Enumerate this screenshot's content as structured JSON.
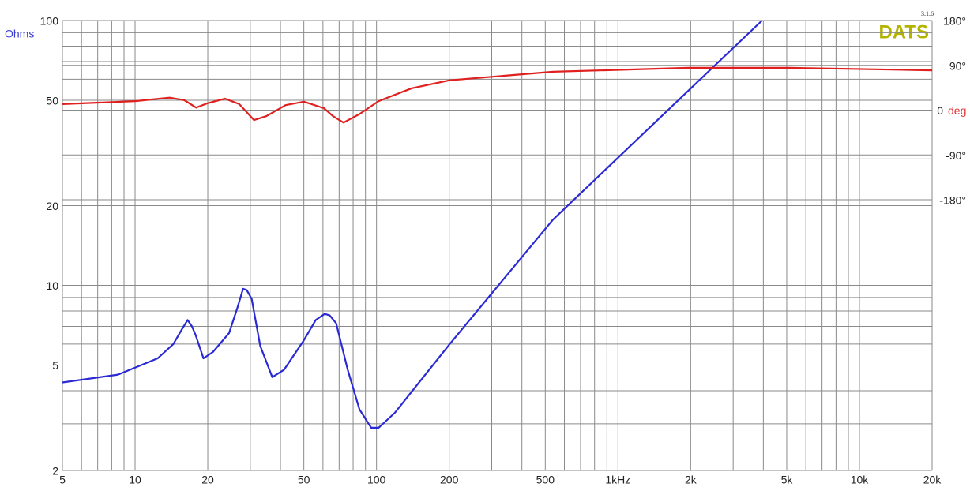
{
  "chart_data": {
    "type": "line",
    "logo": "DATS",
    "version": "3.1.6",
    "ylabel": "Ohms",
    "y2label": "deg",
    "xlog": true,
    "ylog": true,
    "xlim": [
      5,
      20000
    ],
    "ylim": [
      2,
      100
    ],
    "y2lim": [
      -724,
      180
    ],
    "xticks": [
      5,
      10,
      20,
      50,
      100,
      200,
      500,
      {
        "value": 1000,
        "label": "1kHz"
      },
      {
        "value": 2000,
        "label": "2k"
      },
      {
        "value": 5000,
        "label": "5k"
      },
      {
        "value": 10000,
        "label": "10k"
      },
      {
        "value": 20000,
        "label": "20k"
      }
    ],
    "yticks": [
      2,
      5,
      10,
      20,
      50,
      100
    ],
    "y2ticks": [
      {
        "value": 180,
        "label": "180°"
      },
      {
        "value": 90,
        "label": "90°"
      },
      0,
      {
        "value": -90,
        "label": "-90°"
      },
      {
        "value": -180,
        "label": "-180°"
      }
    ],
    "xgrid": [
      5,
      6,
      7,
      8,
      9,
      10,
      20,
      30,
      40,
      50,
      60,
      70,
      80,
      90,
      100,
      200,
      300,
      400,
      500,
      600,
      700,
      800,
      900,
      1000,
      2000,
      3000,
      4000,
      5000,
      6000,
      7000,
      8000,
      9000,
      10000,
      20000
    ],
    "ygrid": [
      2,
      3,
      4,
      5,
      6,
      7,
      8,
      9,
      10,
      20,
      30,
      40,
      50,
      60,
      70,
      80,
      90,
      100
    ],
    "grid": true,
    "series": [
      {
        "color": "#2a2ad4",
        "x": [
          5,
          8.5,
          12.4,
          14.4,
          15.6,
          16.5,
          17.2,
          17.8,
          19.2,
          21,
          24.5,
          26.5,
          28,
          29,
          30.4,
          33,
          37,
          41.4,
          50,
          56,
          61,
          64,
          68,
          76,
          85,
          95,
          102,
          119,
          201,
          538,
          1963,
          3950
        ],
        "values": [
          4.3,
          4.6,
          5.3,
          6.0,
          6.8,
          7.4,
          7.0,
          6.5,
          5.3,
          5.6,
          6.6,
          8.2,
          9.7,
          9.6,
          8.9,
          5.9,
          4.5,
          4.8,
          6.2,
          7.4,
          7.8,
          7.7,
          7.2,
          4.8,
          3.4,
          2.9,
          2.9,
          3.3,
          6.0,
          17.7,
          54.5,
          100
        ]
      },
      {
        "color": "#e01f1f",
        "axis": "y2",
        "x": [
          5,
          10,
          13.9,
          16,
          17.9,
          20,
          23.6,
          27,
          31.1,
          35,
          42,
          50,
          60.5,
          66,
          73,
          85,
          102,
          140,
          201,
          538,
          1963,
          5150,
          20000
        ],
        "values": [
          12,
          18,
          25,
          20,
          5,
          14,
          23,
          12,
          -20,
          -12,
          10,
          17,
          4,
          -12,
          -25,
          -8,
          18,
          44,
          60,
          77,
          85,
          85,
          80
        ]
      }
    ]
  }
}
